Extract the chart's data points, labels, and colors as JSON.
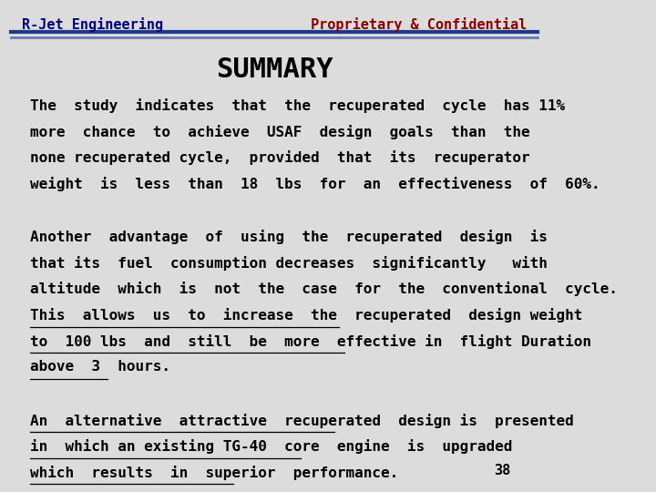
{
  "background_color": "#dcdcdc",
  "header_left_text": "R-Jet Engineering",
  "header_left_color": "#000080",
  "header_right_text": "Proprietary & Confidential",
  "header_right_color": "#8b0000",
  "header_line1_color": "#1e3a8a",
  "header_line2_color": "#6b7bb0",
  "title": "SUMMARY",
  "title_color": "#000000",
  "title_fontsize": 22,
  "page_number": "38",
  "body_fontsize": 11.5,
  "body_color": "#000000",
  "paragraph1": [
    "The  study  indicates  that  the  recuperated  cycle  has 11%",
    "more  chance  to  achieve  USAF  design  goals  than  the",
    "none recuperated cycle,  provided  that  its  recuperator",
    "weight  is  less  than  18  lbs  for  an  effectiveness  of  60%."
  ],
  "paragraph2_normal": [
    "Another  advantage  of  using  the  recuperated  design  is",
    "that its  fuel  consumption decreases  significantly   with",
    "altitude  which  is  not  the  case  for  the  conventional  cycle."
  ],
  "paragraph2_underlined": [
    "This  allows  us  to  increase  the  recuperated  design weight ",
    "to  100 lbs  and  still  be  more  effective in  flight Duration ",
    "above  3  hours."
  ],
  "paragraph3_underlined": [
    "An  alternative  attractive  recuperated  design is  presented ",
    "in  which an existing TG-40  core  engine  is  upgraded ",
    "which  results  in  superior  performance."
  ]
}
